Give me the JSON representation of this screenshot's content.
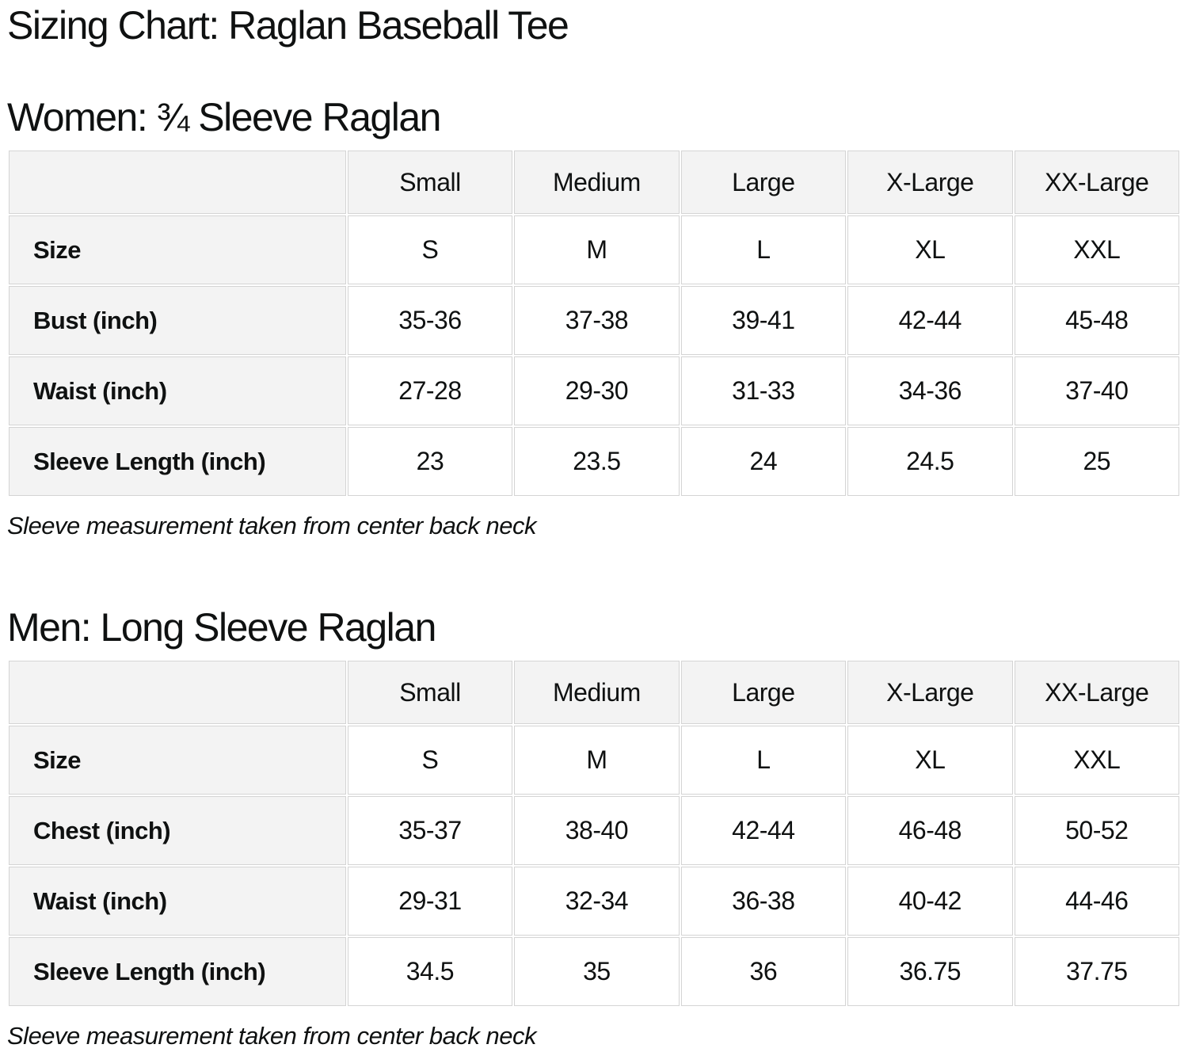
{
  "page": {
    "title": "Sizing Chart: Raglan Baseball Tee"
  },
  "colors": {
    "background": "#ffffff",
    "text": "#0f1111",
    "table_header_bg": "#f3f3f3",
    "table_cell_bg": "#ffffff",
    "table_border": "#d4d4d4"
  },
  "tables": [
    {
      "heading": "Women: ¾ Sleeve Raglan",
      "columns": [
        "Small",
        "Medium",
        "Large",
        "X-Large",
        "XX-Large"
      ],
      "rows": [
        {
          "label": "Size",
          "values": [
            "S",
            "M",
            "L",
            "XL",
            "XXL"
          ]
        },
        {
          "label": "Bust (inch)",
          "values": [
            "35-36",
            "37-38",
            "39-41",
            "42-44",
            "45-48"
          ]
        },
        {
          "label": "Waist (inch)",
          "values": [
            "27-28",
            "29-30",
            "31-33",
            "34-36",
            "37-40"
          ]
        },
        {
          "label": "Sleeve Length (inch)",
          "values": [
            "23",
            "23.5",
            "24",
            "24.5",
            "25"
          ]
        }
      ],
      "note": "Sleeve measurement taken from center back neck"
    },
    {
      "heading": "Men: Long Sleeve Raglan",
      "columns": [
        "Small",
        "Medium",
        "Large",
        "X-Large",
        "XX-Large"
      ],
      "rows": [
        {
          "label": "Size",
          "values": [
            "S",
            "M",
            "L",
            "XL",
            "XXL"
          ]
        },
        {
          "label": "Chest (inch)",
          "values": [
            "35-37",
            "38-40",
            "42-44",
            "46-48",
            "50-52"
          ]
        },
        {
          "label": "Waist (inch)",
          "values": [
            "29-31",
            "32-34",
            "36-38",
            "40-42",
            "44-46"
          ]
        },
        {
          "label": "Sleeve Length (inch)",
          "values": [
            "34.5",
            "35",
            "36",
            "36.75",
            "37.75"
          ]
        }
      ],
      "note": "Sleeve measurement taken from center back neck"
    }
  ]
}
